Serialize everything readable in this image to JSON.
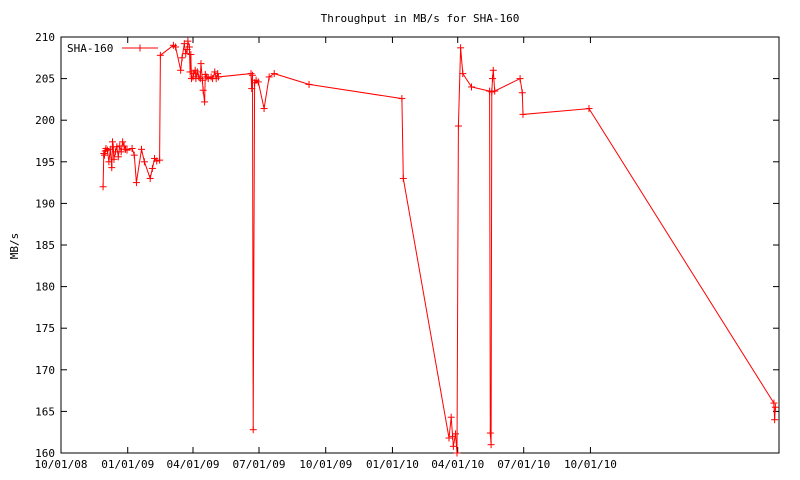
{
  "chart_data": {
    "type": "line",
    "title": "Throughput in MB/s for SHA-160",
    "xlabel": "",
    "ylabel": "MB/s",
    "ylim": [
      160,
      210
    ],
    "yticks": [
      160,
      165,
      170,
      175,
      180,
      185,
      190,
      195,
      200,
      205,
      210
    ],
    "xlim": [
      "2008-10-01",
      "2011-06-18"
    ],
    "xticks": [
      "2008-10-01",
      "2009-01-01",
      "2009-04-01",
      "2009-07-01",
      "2009-10-01",
      "2010-01-01",
      "2010-04-01",
      "2010-07-01",
      "2010-10-01"
    ],
    "xtick_labels": [
      "10/01/08",
      "01/01/09",
      "04/01/09",
      "07/01/09",
      "10/01/09",
      "01/01/10",
      "04/01/10",
      "07/01/10",
      "10/01/10"
    ],
    "grid": false,
    "legend_position": "top-left",
    "series": [
      {
        "name": "SHA-160",
        "color": "#ff0000",
        "marker": "plus",
        "points": [
          [
            "2008-11-28",
            192.0
          ],
          [
            "2008-11-29",
            196.0
          ],
          [
            "2008-11-30",
            195.8
          ],
          [
            "2008-12-01",
            196.3
          ],
          [
            "2008-12-02",
            196.6
          ],
          [
            "2008-12-04",
            196.4
          ],
          [
            "2008-12-06",
            195.0
          ],
          [
            "2008-12-08",
            196.5
          ],
          [
            "2008-12-10",
            194.3
          ],
          [
            "2008-12-11",
            197.4
          ],
          [
            "2008-12-12",
            196.8
          ],
          [
            "2008-12-13",
            195.3
          ],
          [
            "2008-12-15",
            196.2
          ],
          [
            "2008-12-17",
            196.8
          ],
          [
            "2008-12-19",
            195.6
          ],
          [
            "2008-12-21",
            196.9
          ],
          [
            "2008-12-23",
            196.2
          ],
          [
            "2008-12-25",
            197.4
          ],
          [
            "2008-12-27",
            196.9
          ],
          [
            "2008-12-29",
            196.5
          ],
          [
            "2008-12-31",
            196.4
          ],
          [
            "2009-01-07",
            196.6
          ],
          [
            "2009-01-10",
            195.8
          ],
          [
            "2009-01-13",
            192.5
          ],
          [
            "2009-01-20",
            196.5
          ],
          [
            "2009-01-24",
            195.0
          ],
          [
            "2009-02-01",
            193.0
          ],
          [
            "2009-02-04",
            194.2
          ],
          [
            "2009-02-07",
            195.4
          ],
          [
            "2009-02-10",
            195.1
          ],
          [
            "2009-02-14",
            195.2
          ],
          [
            "2009-02-15",
            207.8
          ],
          [
            "2009-03-05",
            209.0
          ],
          [
            "2009-03-08",
            208.8
          ],
          [
            "2009-03-15",
            206.0
          ],
          [
            "2009-03-17",
            207.5
          ],
          [
            "2009-03-20",
            209.2
          ],
          [
            "2009-03-22",
            208.0
          ],
          [
            "2009-03-24",
            208.5
          ],
          [
            "2009-03-25",
            209.5
          ],
          [
            "2009-03-27",
            208.8
          ],
          [
            "2009-03-28",
            205.8
          ],
          [
            "2009-03-29",
            207.9
          ],
          [
            "2009-03-30",
            205.0
          ],
          [
            "2009-04-01",
            205.2
          ],
          [
            "2009-04-02",
            205.6
          ],
          [
            "2009-04-04",
            206.0
          ],
          [
            "2009-04-05",
            205.0
          ],
          [
            "2009-04-07",
            205.8
          ],
          [
            "2009-04-09",
            205.2
          ],
          [
            "2009-04-11",
            205.0
          ],
          [
            "2009-04-12",
            206.8
          ],
          [
            "2009-04-14",
            204.8
          ],
          [
            "2009-04-15",
            203.6
          ],
          [
            "2009-04-17",
            202.2
          ],
          [
            "2009-04-18",
            205.5
          ],
          [
            "2009-04-20",
            205.2
          ],
          [
            "2009-04-22",
            205.0
          ],
          [
            "2009-04-26",
            205.2
          ],
          [
            "2009-04-28",
            205.0
          ],
          [
            "2009-05-01",
            205.8
          ],
          [
            "2009-05-03",
            205.0
          ],
          [
            "2009-05-05",
            205.6
          ],
          [
            "2009-05-06",
            205.2
          ],
          [
            "2009-06-20",
            205.6
          ],
          [
            "2009-06-21",
            203.8
          ],
          [
            "2009-06-22",
            205.4
          ],
          [
            "2009-06-23",
            162.8
          ],
          [
            "2009-06-25",
            204.5
          ],
          [
            "2009-06-27",
            204.8
          ],
          [
            "2009-06-30",
            204.6
          ],
          [
            "2009-07-08",
            201.4
          ],
          [
            "2009-07-15",
            205.2
          ],
          [
            "2009-07-22",
            205.6
          ],
          [
            "2009-09-08",
            204.3
          ],
          [
            "2010-01-14",
            202.6
          ],
          [
            "2010-01-16",
            193.0
          ],
          [
            "2010-03-20",
            161.8
          ],
          [
            "2010-03-23",
            164.3
          ],
          [
            "2010-03-25",
            162.0
          ],
          [
            "2010-03-26",
            160.8
          ],
          [
            "2010-03-29",
            162.3
          ],
          [
            "2010-03-31",
            160.0
          ],
          [
            "2010-04-02",
            199.3
          ],
          [
            "2010-04-05",
            208.7
          ],
          [
            "2010-04-08",
            205.6
          ],
          [
            "2010-04-20",
            204.0
          ],
          [
            "2010-05-15",
            203.5
          ],
          [
            "2010-05-16",
            162.4
          ],
          [
            "2010-05-17",
            161.0
          ],
          [
            "2010-05-18",
            203.4
          ],
          [
            "2010-05-19",
            205.0
          ],
          [
            "2010-05-20",
            206.0
          ],
          [
            "2010-05-22",
            203.5
          ],
          [
            "2010-06-26",
            205.0
          ],
          [
            "2010-06-29",
            203.3
          ],
          [
            "2010-06-30",
            200.7
          ],
          [
            "2010-09-29",
            201.4
          ],
          [
            "2011-06-11",
            166.0
          ],
          [
            "2011-06-12",
            164.0
          ],
          [
            "2011-06-13",
            165.5
          ]
        ]
      }
    ]
  }
}
